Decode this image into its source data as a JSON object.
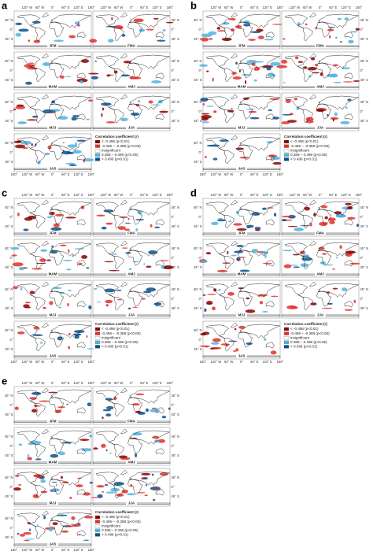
{
  "axes": {
    "top_lon": [
      "120° W",
      "60° W",
      "0°",
      "60° E",
      "120° E",
      "180°"
    ],
    "bottom_lon": [
      "180°",
      "120° W",
      "60° W",
      "0°",
      "60° E",
      "120° E",
      "180°"
    ],
    "lat": [
      "45° N",
      "0°",
      "45° S"
    ]
  },
  "seasons": [
    "JFM",
    "FMA",
    "MAM",
    "AMJ",
    "MJJ",
    "JJA",
    "JAS"
  ],
  "legend": {
    "title": "Correlation coefficient (r)",
    "items": [
      {
        "label": "< -0.496 (p<0.01)",
        "color": "#8b0000"
      },
      {
        "label": "-0.496 – -0.388 (p<0.05)",
        "color": "#e0302a"
      },
      {
        "label": "insignificant",
        "color": "#ffffff"
      },
      {
        "label": "0.388 – 0.496 (p<0.05)",
        "color": "#4fb3e0"
      },
      {
        "label": "> 0.496 (p<0.01)",
        "color": "#0a4f8a"
      }
    ]
  },
  "panels": [
    {
      "letter": "a"
    },
    {
      "letter": "b"
    },
    {
      "letter": "c"
    },
    {
      "letter": "d"
    },
    {
      "letter": "e"
    }
  ]
}
